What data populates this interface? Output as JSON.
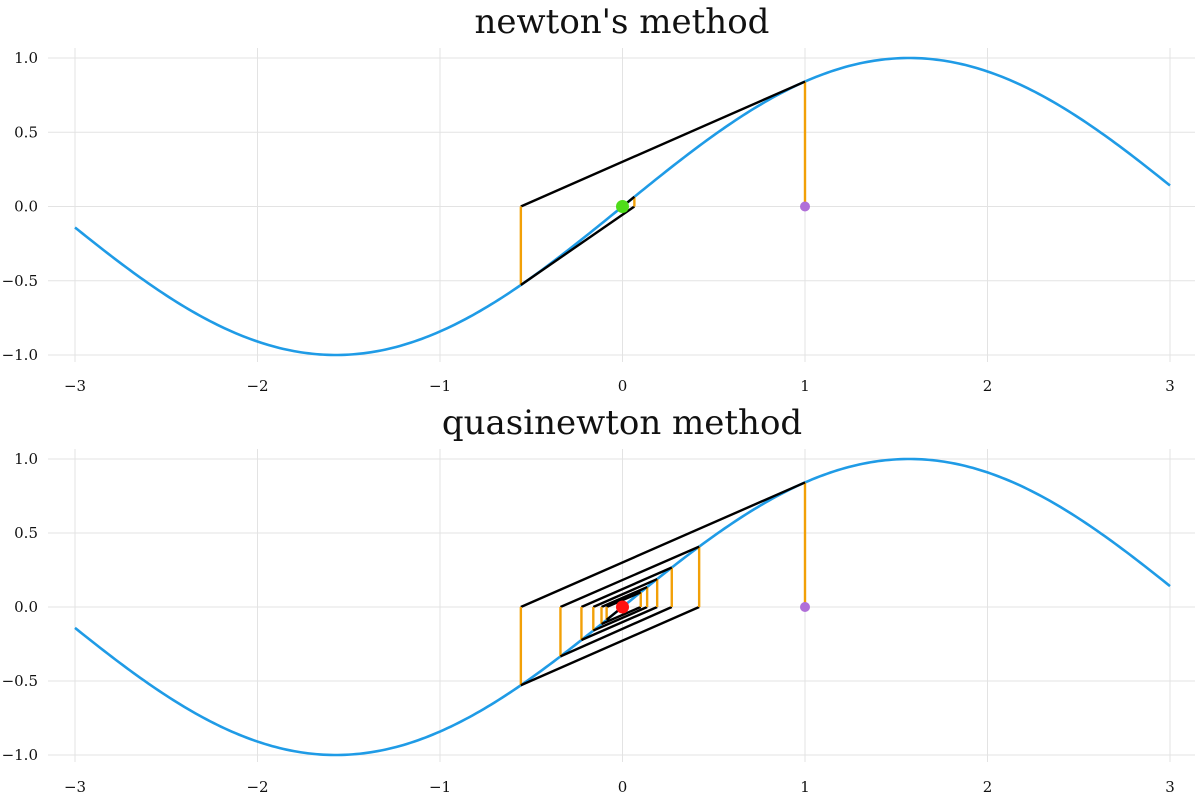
{
  "colors": {
    "curve": "#1f9be6",
    "vertical": "#f2a007",
    "tangent": "#000000",
    "start_point": "#b06fd8",
    "newton_root": "#4fdc1a",
    "quasi_root": "#ff1111",
    "grid": "#e3e3e3"
  },
  "chart_data": [
    {
      "type": "line",
      "title": "newton's method",
      "xlabel": "",
      "ylabel": "",
      "xlim": [
        -3,
        3
      ],
      "ylim": [
        -1,
        1
      ],
      "grid": true,
      "x_ticks": [
        -3,
        -2,
        -1,
        0,
        1,
        2,
        3
      ],
      "y_ticks": [
        -1.0,
        -0.5,
        0.0,
        0.5,
        1.0
      ],
      "x_tick_labels": [
        "−3",
        "−2",
        "−1",
        "0",
        "1",
        "2",
        "3"
      ],
      "y_tick_labels": [
        "−1.0",
        "−0.5",
        "0.0",
        "0.5",
        "1.0"
      ],
      "curve": {
        "function": "sin(x)",
        "x_range": [
          -3,
          3
        ]
      },
      "iterates": [
        1.0,
        -0.557,
        0.065,
        0.0
      ],
      "start_point": [
        1.0,
        0.0
      ],
      "root_point": [
        0.0,
        0.0
      ]
    },
    {
      "type": "line",
      "title": "quasinewton method",
      "xlabel": "",
      "ylabel": "",
      "xlim": [
        -3,
        3
      ],
      "ylim": [
        -1,
        1
      ],
      "grid": true,
      "x_ticks": [
        -3,
        -2,
        -1,
        0,
        1,
        2,
        3
      ],
      "y_ticks": [
        -1.0,
        -0.5,
        0.0,
        0.5,
        1.0
      ],
      "x_tick_labels": [
        "−3",
        "−2",
        "−1",
        "0",
        "1",
        "2",
        "3"
      ],
      "y_tick_labels": [
        "−1.0",
        "−0.5",
        "0.0",
        "0.5",
        "1.0"
      ],
      "curve": {
        "function": "sin(x)",
        "x_range": [
          -3,
          3
        ]
      },
      "iterates": [
        1.0,
        -0.557,
        0.42,
        -0.34,
        0.27,
        -0.225,
        0.19,
        -0.16,
        0.135,
        -0.115,
        0.1,
        -0.087,
        0.0
      ],
      "start_point": [
        1.0,
        0.0
      ],
      "root_point": [
        0.0,
        0.0
      ]
    }
  ]
}
